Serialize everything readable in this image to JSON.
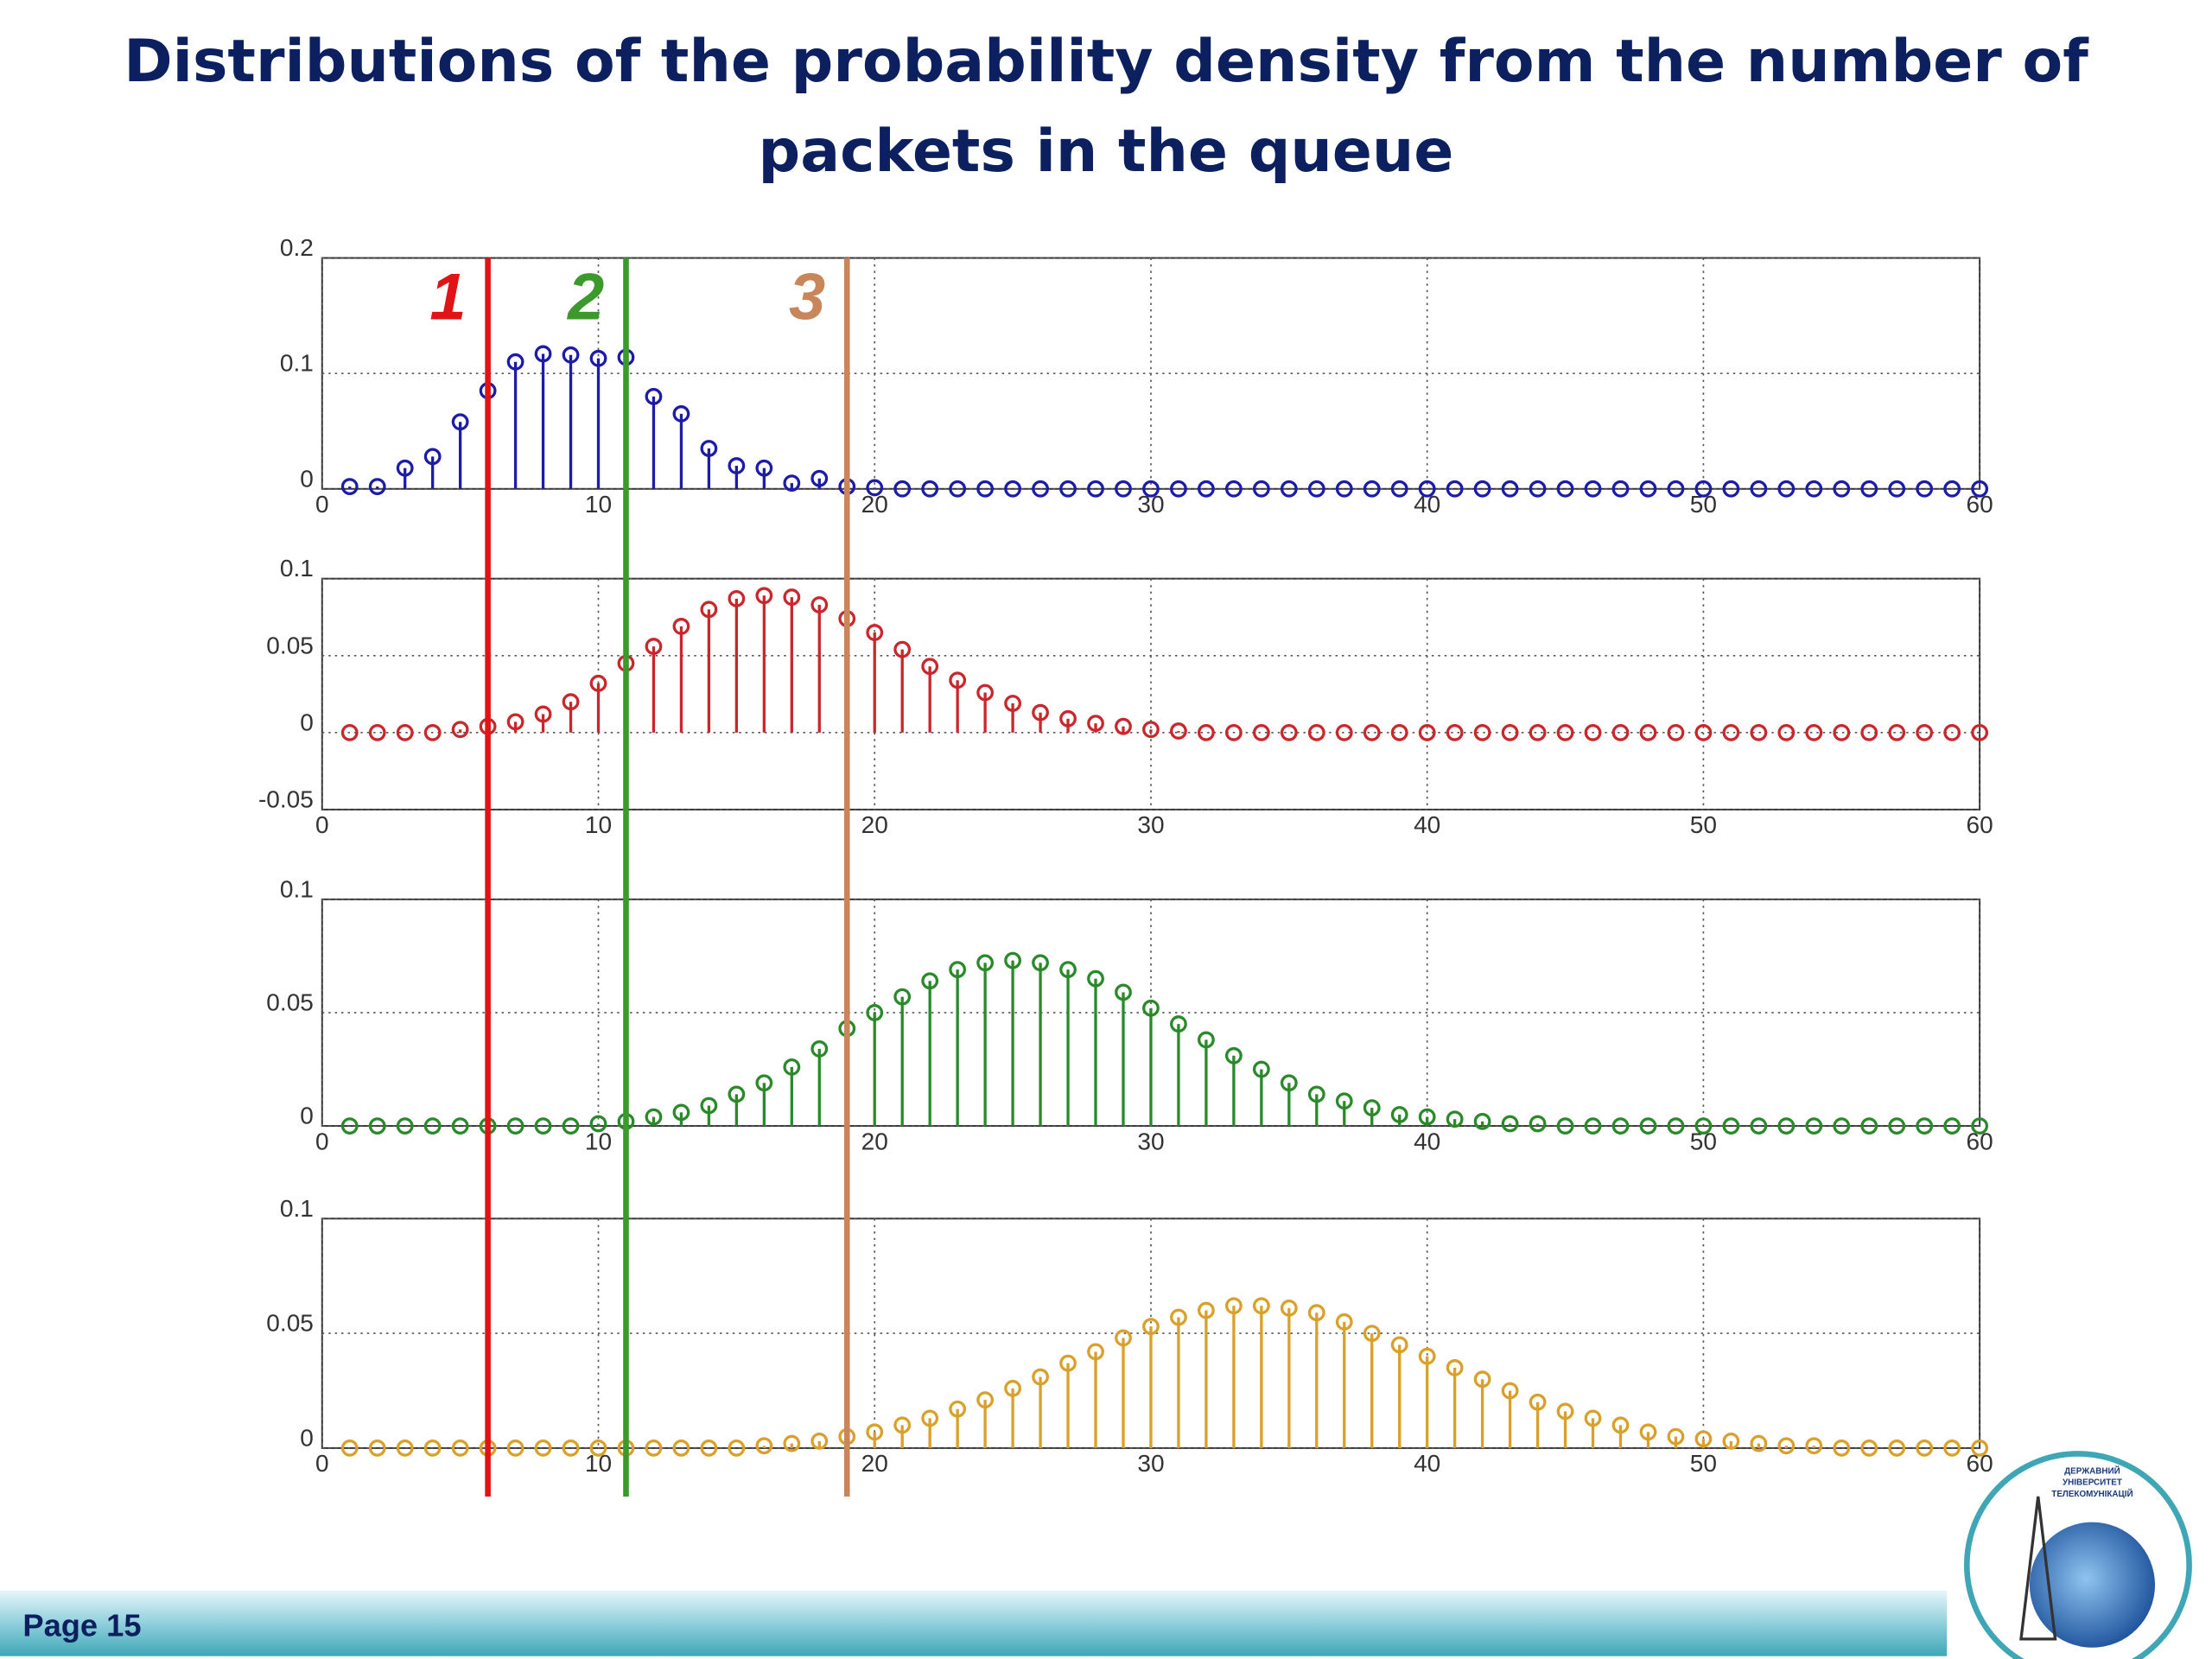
{
  "title": "Distributions of the probability density from the number of packets in the queue",
  "page_label": "Page 15",
  "logo": {
    "lines": [
      "ДЕРЖАВНИЙ",
      "УНІВЕРСИТЕТ",
      "ТЕЛЕКОМУНІКАЦІЙ"
    ]
  },
  "markers": [
    {
      "label": "1",
      "x": 6,
      "color": "#e01414"
    },
    {
      "label": "2",
      "x": 11,
      "color": "#3c9a2c"
    },
    {
      "label": "3",
      "x": 19,
      "color": "#c8865a"
    }
  ],
  "chart_data": [
    {
      "type": "stem",
      "color": "#1c1ca8",
      "xlim": [
        0,
        60
      ],
      "xticks": [
        0,
        10,
        20,
        30,
        40,
        50,
        60
      ],
      "ylim": [
        0,
        0.2
      ],
      "yticks": [
        0,
        0.1,
        0.2
      ],
      "grid": true,
      "x": [
        1,
        2,
        3,
        4,
        5,
        6,
        7,
        8,
        9,
        10,
        11,
        12,
        13,
        14,
        15,
        16,
        17,
        18,
        19,
        20,
        21,
        22,
        23,
        24,
        25,
        26,
        27,
        28,
        29,
        30,
        31,
        32,
        33,
        34,
        35,
        36,
        37,
        38,
        39,
        40,
        41,
        42,
        43,
        44,
        45,
        46,
        47,
        48,
        49,
        50,
        51,
        52,
        53,
        54,
        55,
        56,
        57,
        58,
        59,
        60
      ],
      "values": [
        0.002,
        0.002,
        0.018,
        0.028,
        0.058,
        0.085,
        0.11,
        0.117,
        0.116,
        0.113,
        0.114,
        0.08,
        0.065,
        0.035,
        0.02,
        0.018,
        0.005,
        0.009,
        0.002,
        0.001,
        0,
        0,
        0,
        0,
        0,
        0,
        0,
        0,
        0,
        0,
        0,
        0,
        0,
        0,
        0,
        0,
        0,
        0,
        0,
        0,
        0,
        0,
        0,
        0,
        0,
        0,
        0,
        0,
        0,
        0,
        0,
        0,
        0,
        0,
        0,
        0,
        0,
        0,
        0,
        0
      ]
    },
    {
      "type": "stem",
      "color": "#c8282c",
      "xlim": [
        0,
        60
      ],
      "xticks": [
        0,
        10,
        20,
        30,
        40,
        50,
        60
      ],
      "ylim": [
        -0.05,
        0.1
      ],
      "yticks": [
        -0.05,
        0,
        0.05,
        0.1
      ],
      "grid": true,
      "x": [
        1,
        2,
        3,
        4,
        5,
        6,
        7,
        8,
        9,
        10,
        11,
        12,
        13,
        14,
        15,
        16,
        17,
        18,
        19,
        20,
        21,
        22,
        23,
        24,
        25,
        26,
        27,
        28,
        29,
        30,
        31,
        32,
        33,
        34,
        35,
        36,
        37,
        38,
        39,
        40,
        41,
        42,
        43,
        44,
        45,
        46,
        47,
        48,
        49,
        50,
        51,
        52,
        53,
        54,
        55,
        56,
        57,
        58,
        59,
        60
      ],
      "values": [
        0,
        0,
        0,
        0,
        0.002,
        0.004,
        0.007,
        0.012,
        0.02,
        0.032,
        0.045,
        0.056,
        0.069,
        0.08,
        0.087,
        0.089,
        0.088,
        0.083,
        0.074,
        0.065,
        0.054,
        0.043,
        0.034,
        0.026,
        0.019,
        0.013,
        0.009,
        0.006,
        0.004,
        0.002,
        0.001,
        0,
        0,
        0,
        0,
        0,
        0,
        0,
        0,
        0,
        0,
        0,
        0,
        0,
        0,
        0,
        0,
        0,
        0,
        0,
        0,
        0,
        0,
        0,
        0,
        0,
        0,
        0,
        0,
        0
      ]
    },
    {
      "type": "stem",
      "color": "#2a8a2a",
      "xlim": [
        0,
        60
      ],
      "xticks": [
        0,
        10,
        20,
        30,
        40,
        50,
        60
      ],
      "ylim": [
        0,
        0.1
      ],
      "yticks": [
        0,
        0.05,
        0.1
      ],
      "grid": true,
      "x": [
        1,
        2,
        3,
        4,
        5,
        6,
        7,
        8,
        9,
        10,
        11,
        12,
        13,
        14,
        15,
        16,
        17,
        18,
        19,
        20,
        21,
        22,
        23,
        24,
        25,
        26,
        27,
        28,
        29,
        30,
        31,
        32,
        33,
        34,
        35,
        36,
        37,
        38,
        39,
        40,
        41,
        42,
        43,
        44,
        45,
        46,
        47,
        48,
        49,
        50,
        51,
        52,
        53,
        54,
        55,
        56,
        57,
        58,
        59,
        60
      ],
      "values": [
        0,
        0,
        0,
        0,
        0,
        0,
        0,
        0,
        0,
        0.001,
        0.002,
        0.004,
        0.006,
        0.009,
        0.014,
        0.019,
        0.026,
        0.034,
        0.043,
        0.05,
        0.057,
        0.064,
        0.069,
        0.072,
        0.073,
        0.072,
        0.069,
        0.065,
        0.059,
        0.052,
        0.045,
        0.038,
        0.031,
        0.025,
        0.019,
        0.014,
        0.011,
        0.008,
        0.005,
        0.004,
        0.003,
        0.002,
        0.001,
        0.001,
        0,
        0,
        0,
        0,
        0,
        0,
        0,
        0,
        0,
        0,
        0,
        0,
        0,
        0,
        0,
        0
      ]
    },
    {
      "type": "stem",
      "color": "#d9a12a",
      "xlim": [
        0,
        60
      ],
      "xticks": [
        0,
        10,
        20,
        30,
        40,
        50,
        60
      ],
      "ylim": [
        0,
        0.1
      ],
      "yticks": [
        0,
        0.05,
        0.1
      ],
      "grid": true,
      "x": [
        1,
        2,
        3,
        4,
        5,
        6,
        7,
        8,
        9,
        10,
        11,
        12,
        13,
        14,
        15,
        16,
        17,
        18,
        19,
        20,
        21,
        22,
        23,
        24,
        25,
        26,
        27,
        28,
        29,
        30,
        31,
        32,
        33,
        34,
        35,
        36,
        37,
        38,
        39,
        40,
        41,
        42,
        43,
        44,
        45,
        46,
        47,
        48,
        49,
        50,
        51,
        52,
        53,
        54,
        55,
        56,
        57,
        58,
        59,
        60
      ],
      "values": [
        0,
        0,
        0,
        0,
        0,
        0,
        0,
        0,
        0,
        0,
        0,
        0,
        0,
        0,
        0,
        0.001,
        0.002,
        0.003,
        0.005,
        0.007,
        0.01,
        0.013,
        0.017,
        0.021,
        0.026,
        0.031,
        0.037,
        0.042,
        0.048,
        0.053,
        0.057,
        0.06,
        0.062,
        0.062,
        0.061,
        0.059,
        0.055,
        0.05,
        0.045,
        0.04,
        0.035,
        0.03,
        0.025,
        0.02,
        0.016,
        0.013,
        0.01,
        0.007,
        0.005,
        0.004,
        0.003,
        0.002,
        0.001,
        0.001,
        0,
        0,
        0,
        0,
        0,
        0
      ]
    }
  ]
}
